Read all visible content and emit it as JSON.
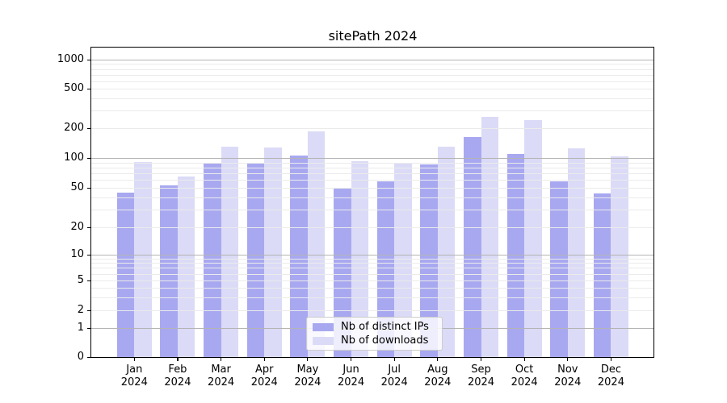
{
  "chart_data": {
    "type": "bar",
    "title": "sitePath 2024",
    "categories": [
      "Jan 2024",
      "Feb 2024",
      "Mar 2024",
      "Apr 2024",
      "May 2024",
      "Jun 2024",
      "Jul 2024",
      "Aug 2024",
      "Sep 2024",
      "Oct 2024",
      "Nov 2024",
      "Dec 2024"
    ],
    "series": [
      {
        "name": "Nb of distinct IPs",
        "color": "#a8a8f1",
        "values": [
          45,
          53,
          87,
          89,
          106,
          50,
          58,
          86,
          163,
          110,
          58,
          44
        ]
      },
      {
        "name": "Nb of downloads",
        "color": "#dbdbf7",
        "values": [
          91,
          65,
          131,
          127,
          184,
          93,
          88,
          130,
          262,
          241,
          125,
          103
        ]
      }
    ],
    "yscale": "symlog",
    "ytick_labels": [
      "0",
      "1",
      "2",
      "5",
      "10",
      "20",
      "50",
      "100",
      "200",
      "500",
      "1000"
    ],
    "ylim": [
      0,
      1200
    ],
    "grid": true,
    "legend_position": "lower center",
    "colors": {
      "major_grid": "#b4b4b4",
      "minor_grid": "#ebebeb",
      "axis": "#000000",
      "background": "#ffffff"
    }
  }
}
